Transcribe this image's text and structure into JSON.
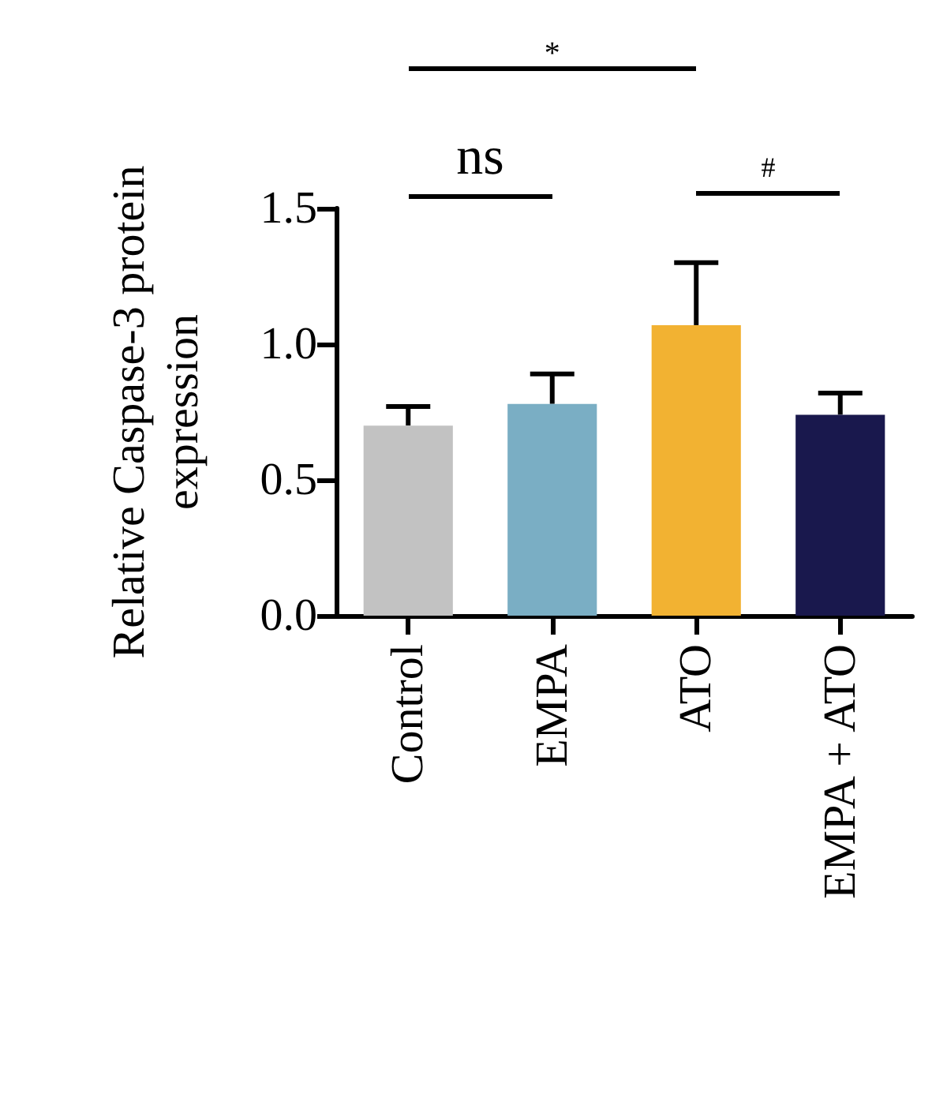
{
  "chart_data": {
    "type": "bar",
    "ylabel": "Relative Caspase-3 protein expression",
    "categories": [
      "Control",
      "EMPA",
      "ATO",
      "EMPA + ATO"
    ],
    "values": [
      0.7,
      0.78,
      1.07,
      0.74
    ],
    "colors": [
      "#c2c2c2",
      "#7aaec4",
      "#f2b232",
      "#19184d"
    ],
    "errors": [
      [
        0.7,
        0.77
      ],
      [
        0.78,
        0.89
      ],
      [
        1.07,
        1.3
      ],
      [
        0.74,
        0.82
      ]
    ],
    "ylim": [
      0,
      1.5
    ],
    "yticks": [
      {
        "value": 0,
        "label": "0.0"
      },
      0.5,
      {
        "value": 1,
        "label": "1.0"
      },
      1.5
    ],
    "annotations": [
      "*",
      "ns",
      "#"
    ]
  }
}
